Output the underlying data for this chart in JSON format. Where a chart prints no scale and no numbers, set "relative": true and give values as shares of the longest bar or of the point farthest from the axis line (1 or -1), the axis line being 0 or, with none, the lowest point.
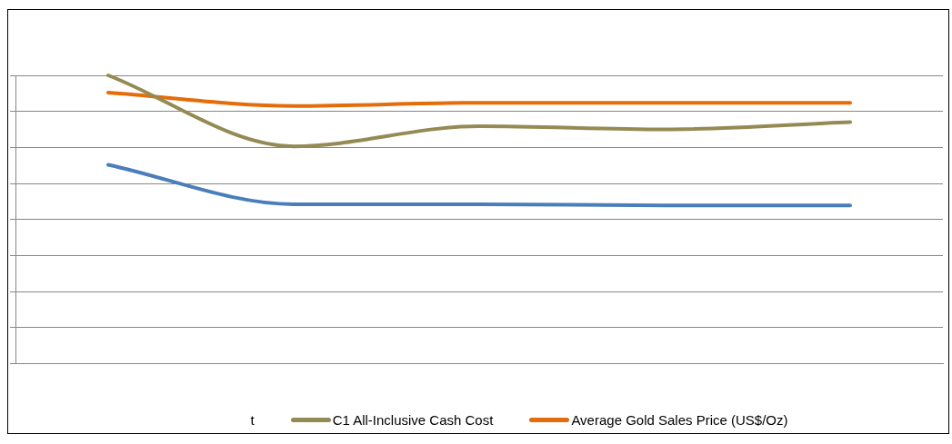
{
  "chart_data": {
    "type": "line",
    "relative": true,
    "categories": [
      null,
      null,
      null,
      null,
      null
    ],
    "series": [
      {
        "color": "#4a7ebb",
        "values": [
          0.69,
          0.553,
          0.553,
          0.549,
          0.549
        ]
      },
      {
        "name": "C1 All-Inclusive Cash Cost",
        "color": "#948a54",
        "values": [
          1,
          0.754,
          0.824,
          0.813,
          0.838
        ]
      },
      {
        "name": "Average Gold Sales Price (US$/Oz)",
        "color": "#e46c0a",
        "values": [
          0.94,
          0.894,
          0.905,
          0.905,
          0.905
        ]
      }
    ],
    "annotations": [
      "t"
    ],
    "grid": "y",
    "legend": "bottom",
    "marker": "none"
  }
}
